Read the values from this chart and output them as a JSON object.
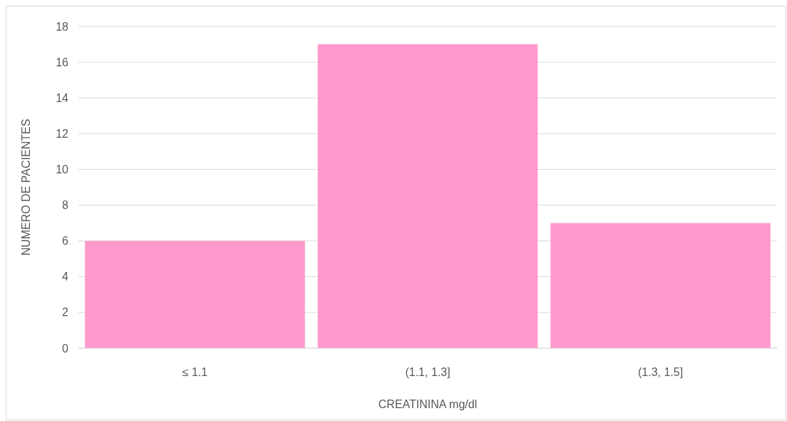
{
  "chart_data": {
    "type": "bar",
    "categories": [
      "≤ 1.1",
      "(1.1, 1.3]",
      "(1.3, 1.5]"
    ],
    "values": [
      6,
      17,
      7
    ],
    "color": "#ff99cc",
    "xlabel": "CREATININA mg/dl",
    "ylabel": "NUMERO DE PACIENTES",
    "ylim": [
      0,
      18
    ],
    "yticks": [
      0,
      2,
      4,
      6,
      8,
      10,
      12,
      14,
      16,
      18
    ],
    "grid": "y"
  }
}
